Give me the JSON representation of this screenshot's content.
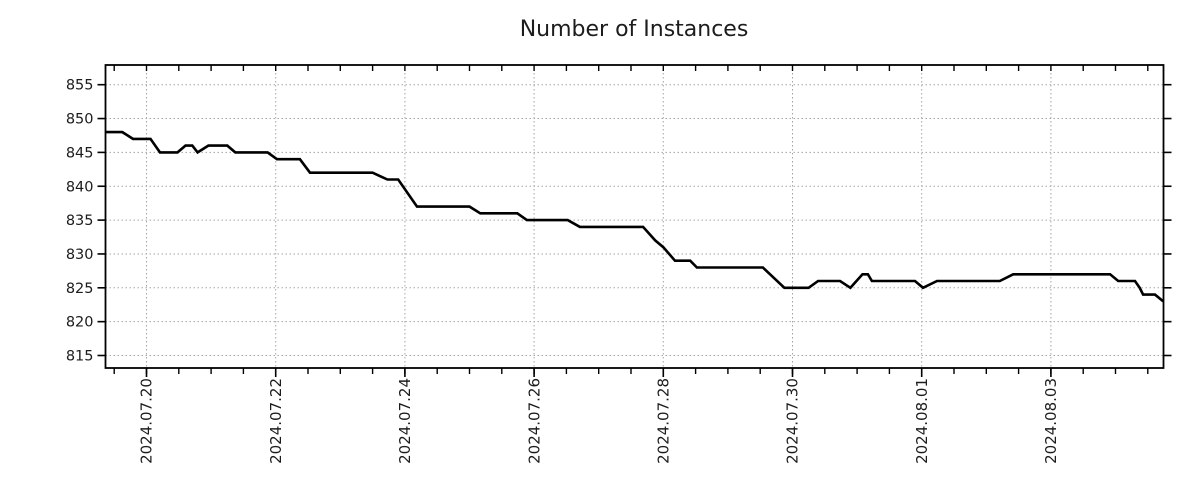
{
  "title": "Number of Instances",
  "colors": {
    "line": "#000000",
    "grid": "#a6a6a6",
    "axis": "#000000",
    "text": "#1c1c1c",
    "background": "#ffffff"
  },
  "chart_data": {
    "type": "line",
    "title": "Number of Instances",
    "xlabel": "",
    "ylabel": "",
    "legend": "none",
    "grid": true,
    "grid_style": "dashed",
    "y_ticks": [
      815,
      820,
      825,
      830,
      835,
      840,
      845,
      850,
      855
    ],
    "ylim": [
      813.2,
      857.9
    ],
    "x_axis_epoch": "2024-07-20 00:00",
    "xlim_days": [
      -0.635,
      15.743
    ],
    "x_minor_tick_interval_days": 0.5,
    "x_ticks": [
      {
        "label": "2024.07.20",
        "day": 0
      },
      {
        "label": "2024.07.22",
        "day": 2
      },
      {
        "label": "2024.07.24",
        "day": 4
      },
      {
        "label": "2024.07.26",
        "day": 6
      },
      {
        "label": "2024.07.28",
        "day": 8
      },
      {
        "label": "2024.07.30",
        "day": 10
      },
      {
        "label": "2024.08.01",
        "day": 12
      },
      {
        "label": "2024.08.03",
        "day": 14
      }
    ],
    "series": [
      {
        "name": "Number of Instances",
        "color": "#000000",
        "points": [
          [
            "2024-07-19 08:45",
            848
          ],
          [
            "2024-07-19 15:00",
            848
          ],
          [
            "2024-07-19 19:00",
            847
          ],
          [
            "2024-07-20 01:30",
            847
          ],
          [
            "2024-07-20 05:00",
            845
          ],
          [
            "2024-07-20 11:30",
            845
          ],
          [
            "2024-07-20 14:30",
            846
          ],
          [
            "2024-07-20 17:00",
            846
          ],
          [
            "2024-07-20 19:00",
            845
          ],
          [
            "2024-07-20 23:00",
            846
          ],
          [
            "2024-07-21 06:00",
            846
          ],
          [
            "2024-07-21 09:00",
            845
          ],
          [
            "2024-07-21 21:00",
            845
          ],
          [
            "2024-07-22 00:30",
            844
          ],
          [
            "2024-07-22 09:00",
            844
          ],
          [
            "2024-07-22 12:45",
            842
          ],
          [
            "2024-07-23 12:00",
            842
          ],
          [
            "2024-07-23 17:30",
            841
          ],
          [
            "2024-07-23 21:30",
            841
          ],
          [
            "2024-07-24 04:30",
            837
          ],
          [
            "2024-07-25 00:00",
            837
          ],
          [
            "2024-07-25 04:00",
            836
          ],
          [
            "2024-07-25 17:45",
            836
          ],
          [
            "2024-07-25 21:20",
            835
          ],
          [
            "2024-07-26 12:30",
            835
          ],
          [
            "2024-07-26 17:00",
            834
          ],
          [
            "2024-07-27 16:30",
            834
          ],
          [
            "2024-07-27 21:00",
            832
          ],
          [
            "2024-07-28 00:00",
            831
          ],
          [
            "2024-07-28 04:20",
            829
          ],
          [
            "2024-07-28 10:00",
            829
          ],
          [
            "2024-07-28 12:30",
            828
          ],
          [
            "2024-07-29 13:00",
            828
          ],
          [
            "2024-07-29 21:00",
            825
          ],
          [
            "2024-07-30 06:00",
            825
          ],
          [
            "2024-07-30 09:30",
            826
          ],
          [
            "2024-07-30 17:40",
            826
          ],
          [
            "2024-07-30 21:30",
            825
          ],
          [
            "2024-07-31 02:00",
            827
          ],
          [
            "2024-07-31 04:00",
            827
          ],
          [
            "2024-07-31 05:30",
            826
          ],
          [
            "2024-07-31 21:30",
            826
          ],
          [
            "2024-08-01 00:30",
            825
          ],
          [
            "2024-08-01 05:40",
            826
          ],
          [
            "2024-08-02 05:00",
            826
          ],
          [
            "2024-08-02 10:00",
            827
          ],
          [
            "2024-08-03 22:00",
            827
          ],
          [
            "2024-08-04 01:00",
            826
          ],
          [
            "2024-08-04 07:15",
            826
          ],
          [
            "2024-08-04 09:00",
            825
          ],
          [
            "2024-08-04 10:15",
            824
          ],
          [
            "2024-08-04 14:40",
            824
          ],
          [
            "2024-08-04 17:40",
            823
          ]
        ]
      }
    ]
  }
}
